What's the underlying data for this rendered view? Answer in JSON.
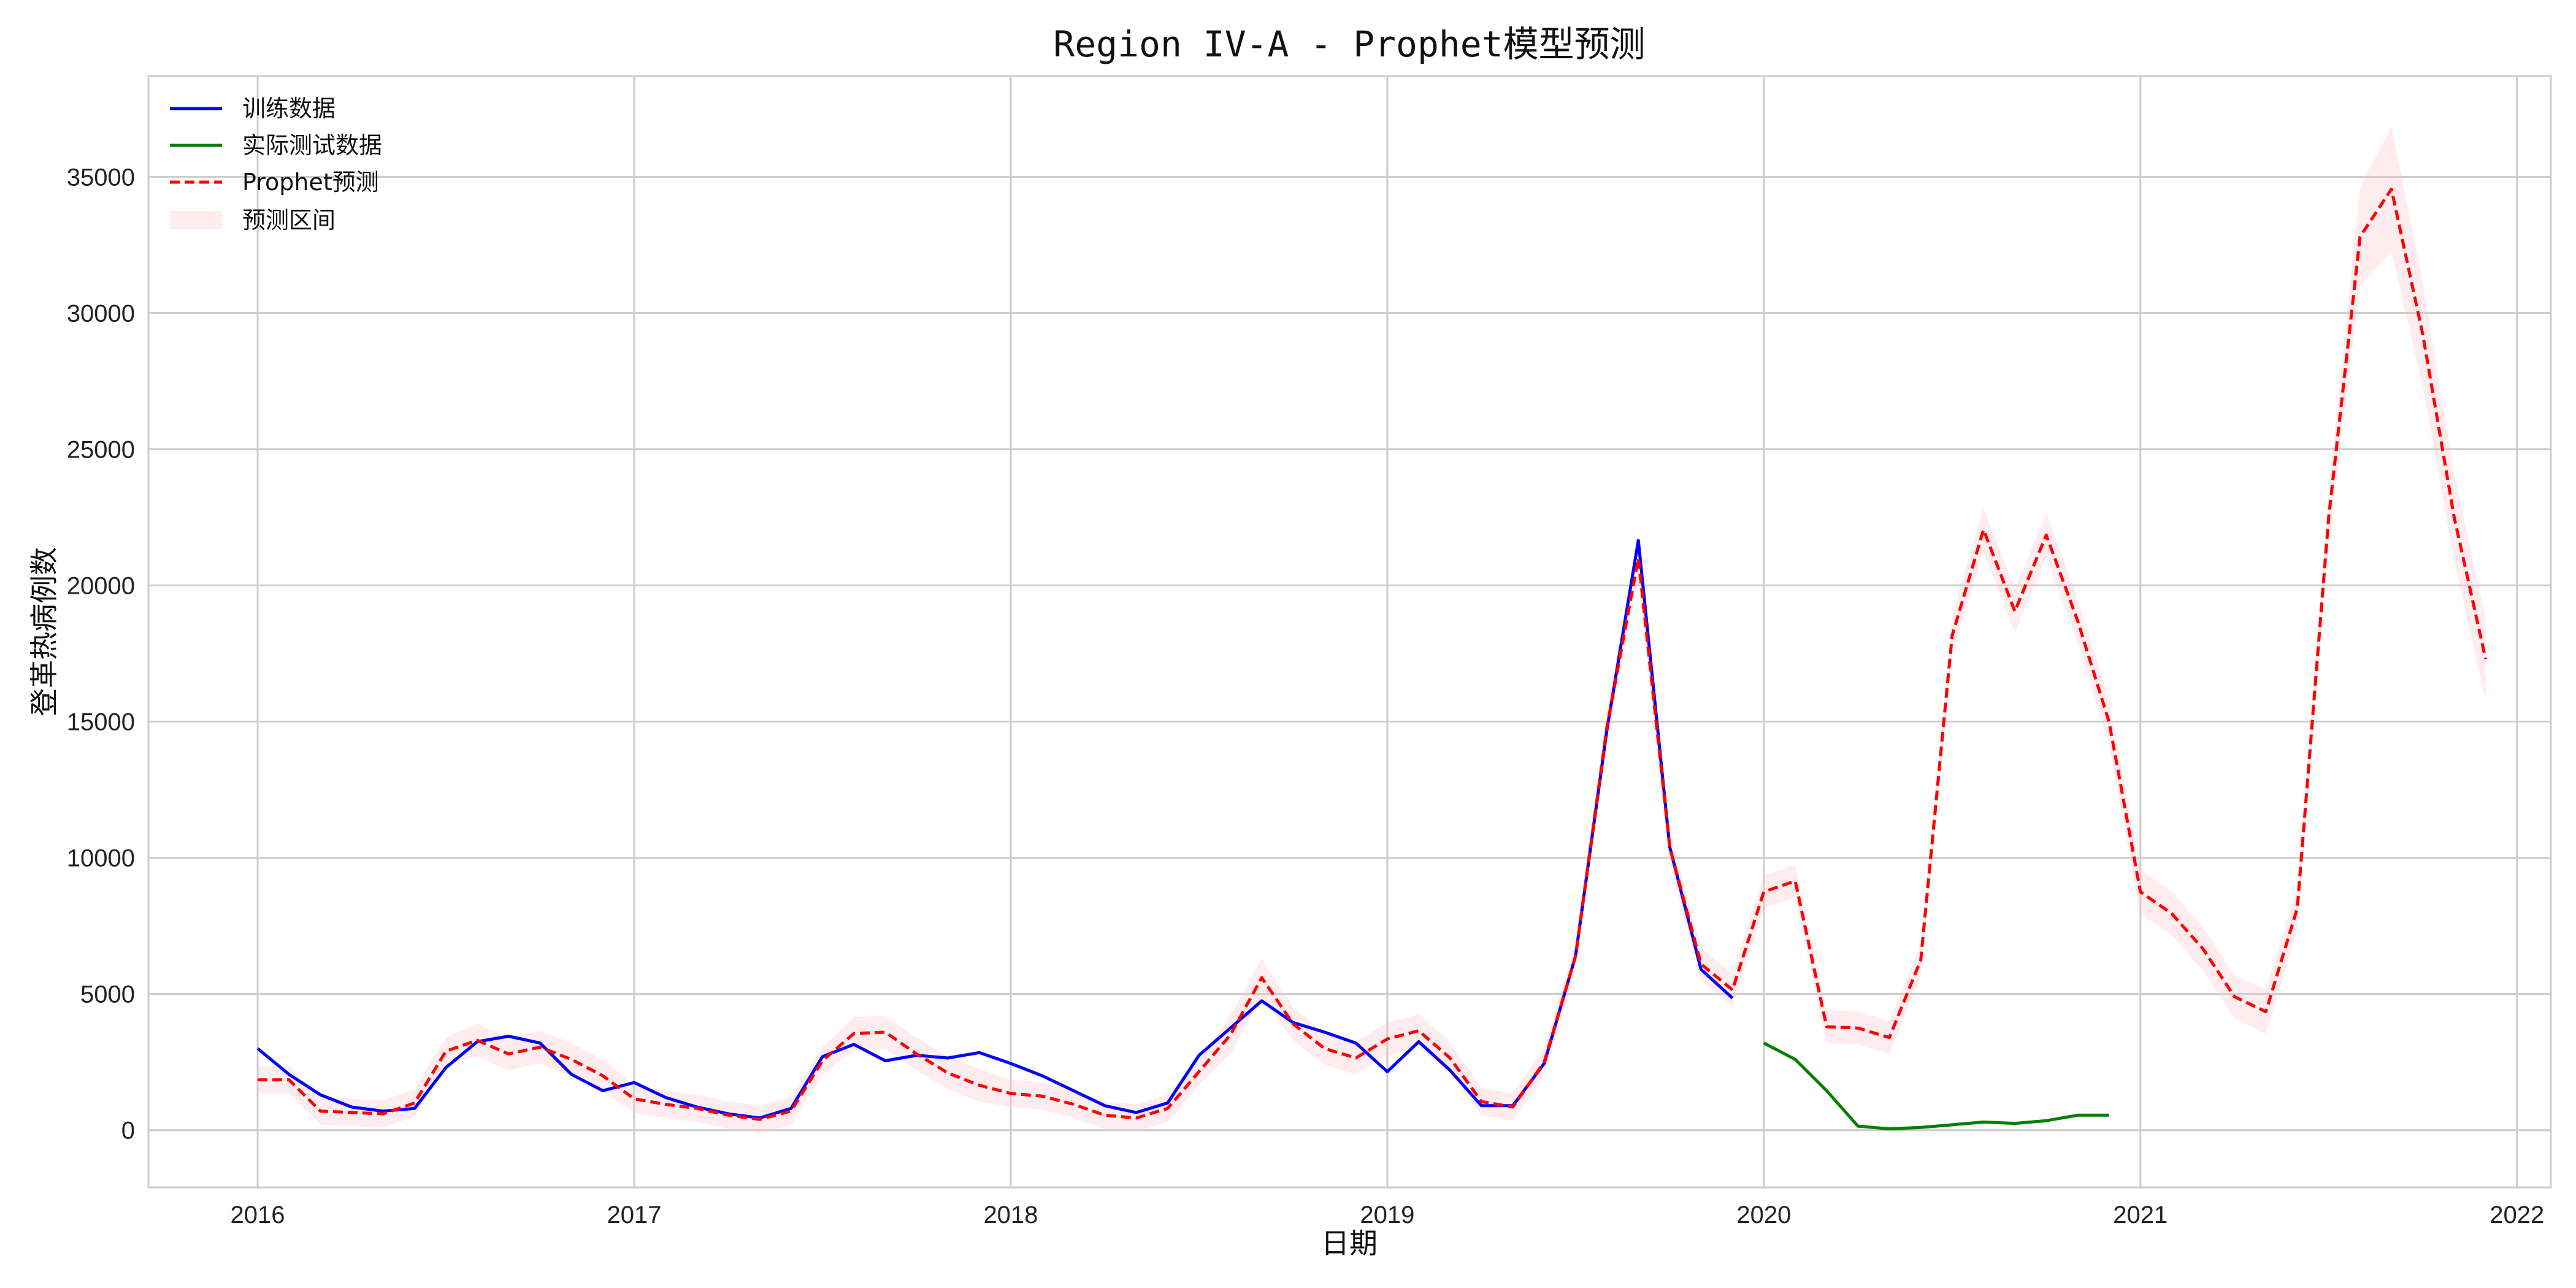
{
  "chart_data": {
    "type": "line",
    "title": "Region IV-A - Prophet模型预测",
    "xlabel": "日期",
    "ylabel": "登革热病例数",
    "x_ticks": [
      "2016",
      "2017",
      "2018",
      "2019",
      "2020",
      "2021",
      "2022"
    ],
    "y_ticks": [
      "0",
      "5000",
      "10000",
      "15000",
      "20000",
      "25000",
      "30000",
      "35000"
    ],
    "xlim": [
      2015.71,
      2022.09
    ],
    "ylim": [
      -2100,
      38700
    ],
    "grid": true,
    "legend_position": "top-left",
    "legend": [
      "训练数据",
      "实际测试数据",
      "Prophet预测",
      "预测区间"
    ],
    "colors": {
      "train": "#0000ff",
      "test": "#008000",
      "forecast": "#ff0000",
      "interval": "#ffc0cb"
    },
    "series": [
      {
        "name": "训练数据",
        "x": [
          "2016-01",
          "2016-02",
          "2016-03",
          "2016-04",
          "2016-05",
          "2016-06",
          "2016-07",
          "2016-08",
          "2016-09",
          "2016-10",
          "2016-11",
          "2016-12",
          "2017-01",
          "2017-02",
          "2017-03",
          "2017-04",
          "2017-05",
          "2017-06",
          "2017-07",
          "2017-08",
          "2017-09",
          "2017-10",
          "2017-11",
          "2017-12",
          "2018-01",
          "2018-02",
          "2018-03",
          "2018-04",
          "2018-05",
          "2018-06",
          "2018-07",
          "2018-08",
          "2018-09",
          "2018-10",
          "2018-11",
          "2018-12",
          "2019-01",
          "2019-02",
          "2019-03",
          "2019-04",
          "2019-05",
          "2019-06",
          "2019-07",
          "2019-08",
          "2019-09",
          "2019-10",
          "2019-11",
          "2019-12"
        ],
        "values": [
          3000,
          2050,
          1300,
          850,
          700,
          800,
          2300,
          3250,
          3450,
          3200,
          2050,
          1450,
          1750,
          1200,
          850,
          600,
          450,
          800,
          2700,
          3150,
          2550,
          2750,
          2650,
          2850,
          2450,
          2000,
          1450,
          900,
          650,
          1000,
          2750,
          3750,
          4750,
          3950,
          3600,
          3200,
          2150,
          3250,
          2200,
          900,
          900,
          2450,
          6400,
          14700,
          21650,
          10400,
          5900,
          4850
        ]
      },
      {
        "name": "实际测试数据",
        "x": [
          "2020-01",
          "2020-02",
          "2020-03",
          "2020-04",
          "2020-05",
          "2020-06",
          "2020-07",
          "2020-08",
          "2020-09",
          "2020-10",
          "2020-11",
          "2020-12"
        ],
        "values": [
          3200,
          2600,
          1450,
          150,
          50,
          100,
          200,
          300,
          250,
          350,
          550,
          550
        ]
      },
      {
        "name": "Prophet预测",
        "x": [
          "2016-01",
          "2016-02",
          "2016-03",
          "2016-04",
          "2016-05",
          "2016-06",
          "2016-07",
          "2016-08",
          "2016-09",
          "2016-10",
          "2016-11",
          "2016-12",
          "2017-01",
          "2017-02",
          "2017-03",
          "2017-04",
          "2017-05",
          "2017-06",
          "2017-07",
          "2017-08",
          "2017-09",
          "2017-10",
          "2017-11",
          "2017-12",
          "2018-01",
          "2018-02",
          "2018-03",
          "2018-04",
          "2018-05",
          "2018-06",
          "2018-07",
          "2018-08",
          "2018-09",
          "2018-10",
          "2018-11",
          "2018-12",
          "2019-01",
          "2019-02",
          "2019-03",
          "2019-04",
          "2019-05",
          "2019-06",
          "2019-07",
          "2019-08",
          "2019-09",
          "2019-10",
          "2019-11",
          "2019-12",
          "2020-01",
          "2020-02",
          "2020-03",
          "2020-04",
          "2020-05",
          "2020-06",
          "2020-07",
          "2020-08",
          "2020-09",
          "2020-10",
          "2020-11",
          "2020-12",
          "2021-01",
          "2021-02",
          "2021-03",
          "2021-04",
          "2021-05",
          "2021-06",
          "2021-07",
          "2021-08",
          "2021-09",
          "2021-10",
          "2021-11",
          "2021-12"
        ],
        "values": [
          1850,
          1850,
          700,
          650,
          600,
          1000,
          2900,
          3300,
          2800,
          3050,
          2600,
          2000,
          1150,
          950,
          800,
          550,
          400,
          700,
          2550,
          3550,
          3600,
          2800,
          2100,
          1650,
          1350,
          1250,
          950,
          550,
          450,
          800,
          2150,
          3500,
          5600,
          3900,
          3000,
          2650,
          3350,
          3650,
          2650,
          1050,
          850,
          2500,
          6400,
          14800,
          21000,
          10400,
          6100,
          5150,
          8750,
          9150,
          3800,
          3750,
          3400,
          6250,
          18150,
          22050,
          19050,
          21850,
          18700,
          15000,
          8750,
          7950,
          6650,
          4900,
          4350,
          8150,
          22500,
          32800,
          34550,
          29200,
          22500,
          17300
        ]
      }
    ],
    "interval": {
      "name": "预测区间",
      "half_width": [
        500,
        500,
        500,
        500,
        500,
        500,
        500,
        600,
        600,
        600,
        600,
        600,
        500,
        500,
        500,
        500,
        500,
        500,
        500,
        600,
        600,
        600,
        600,
        600,
        500,
        500,
        500,
        500,
        500,
        500,
        500,
        700,
        700,
        600,
        600,
        600,
        600,
        600,
        600,
        500,
        500,
        500,
        500,
        700,
        700,
        600,
        600,
        600,
        600,
        600,
        600,
        600,
        600,
        600,
        700,
        800,
        800,
        800,
        800,
        800,
        800,
        800,
        800,
        800,
        800,
        800,
        1000,
        1800,
        2300,
        1900,
        1600,
        1500
      ]
    }
  }
}
